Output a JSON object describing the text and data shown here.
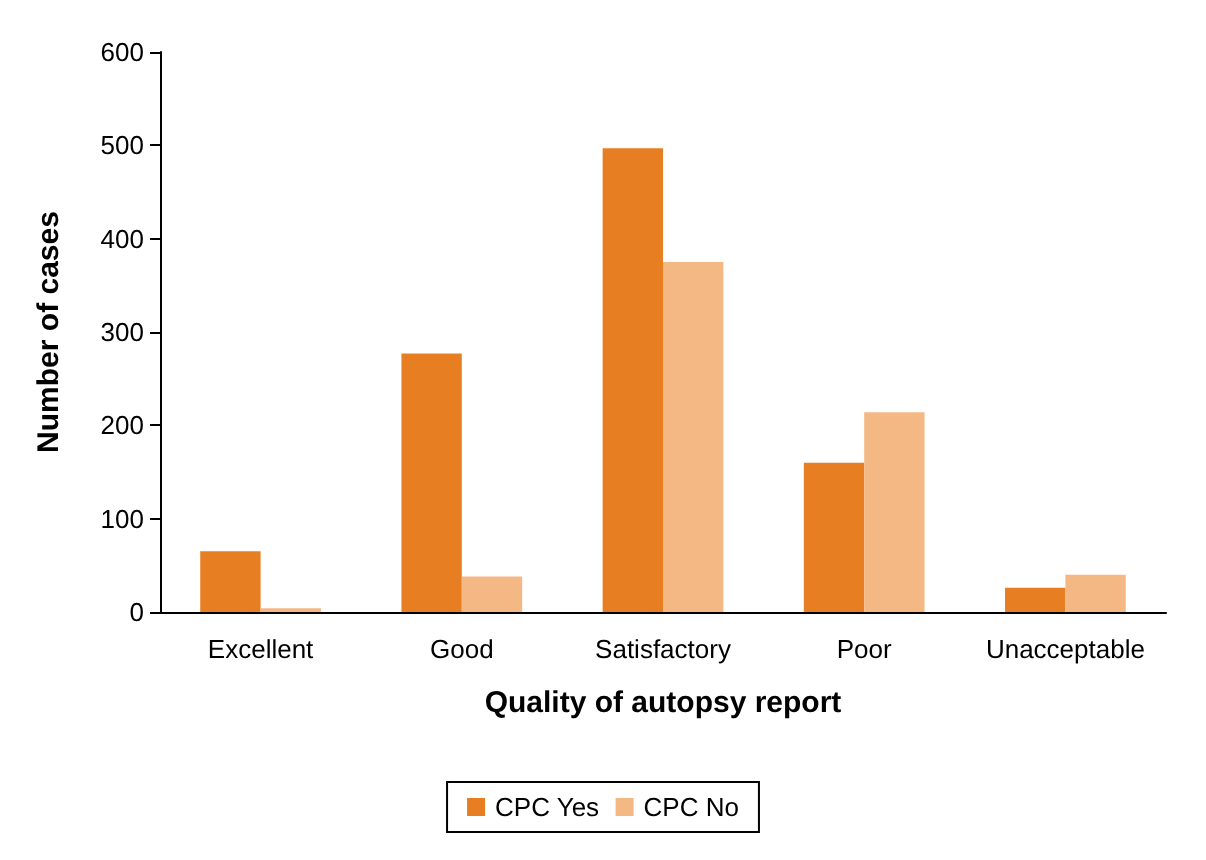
{
  "chart_data": {
    "type": "bar",
    "xlabel": "Quality of autopsy report",
    "ylabel": "Number of cases",
    "categories": [
      "Excellent",
      "Good",
      "Satisfactory",
      "Poor",
      "Unacceptable"
    ],
    "series": [
      {
        "name": "CPC Yes",
        "color": "#e87e22",
        "values": [
          65,
          277,
          497,
          160,
          26
        ]
      },
      {
        "name": "CPC No",
        "color": "#f4b885",
        "values": [
          4,
          38,
          375,
          214,
          40
        ]
      }
    ],
    "ylim": [
      0,
      600
    ],
    "yticks": [
      0,
      100,
      200,
      300,
      400,
      500,
      600
    ],
    "grid": false,
    "legend": "bottom"
  }
}
